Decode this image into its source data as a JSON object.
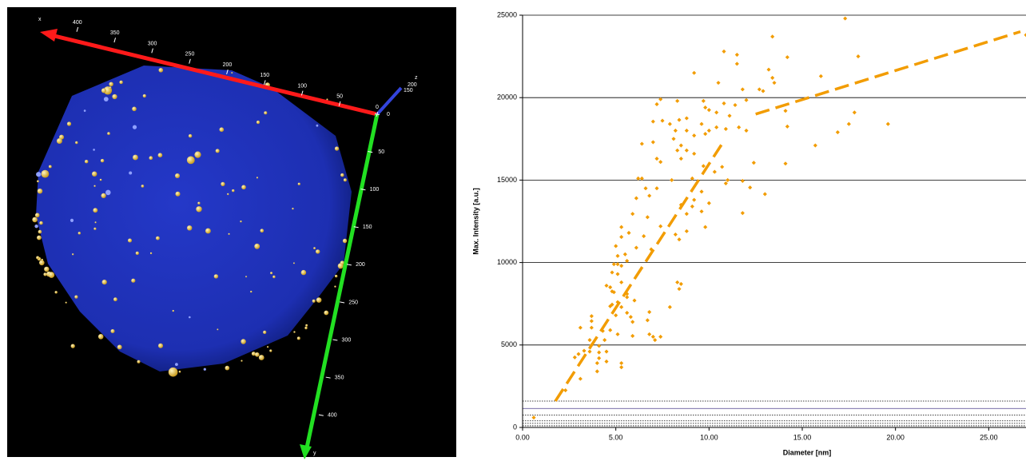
{
  "render": {
    "x_axis_label": "x",
    "x_axis_ticks": [
      0,
      50,
      100,
      150,
      200,
      250,
      300,
      350,
      400
    ],
    "y_axis_label": "y",
    "y_axis_ticks": [
      0,
      50,
      100,
      150,
      200,
      250,
      300,
      350,
      400
    ],
    "z_axis_label": "z",
    "z_axis_ticks": [
      150,
      200
    ]
  },
  "chart_data": {
    "type": "scatter",
    "x_label": "Diameter [nm]",
    "y_label": "Max. Intensity [a.u.]",
    "color": "#f29c00",
    "grid": true,
    "xlim": [
      0,
      27
    ],
    "ylim": [
      0,
      25000
    ],
    "xticks": [
      {
        "value": 0,
        "label": "0.00"
      },
      {
        "value": 5,
        "label": "5.00"
      },
      {
        "value": 10,
        "label": "10.00"
      },
      {
        "value": 15,
        "label": "15.00"
      },
      {
        "value": 20,
        "label": "20.00"
      },
      {
        "value": 25,
        "label": "25.00"
      }
    ],
    "yticks": [
      0,
      5000,
      10000,
      15000,
      20000,
      25000
    ],
    "x": [
      17.3,
      27.0,
      10.8,
      11.5,
      11.5,
      13.4,
      14.2,
      18.0,
      16.0,
      9.2,
      10.5,
      11.8,
      12.7,
      13.2,
      12.9,
      13.4,
      13.5,
      7.4,
      7.2,
      8.3,
      9.7,
      9.8,
      10.0,
      10.8,
      11.4,
      12.0,
      14.1,
      17.8,
      17.5,
      16.9,
      19.6,
      14.2,
      15.7,
      14.1,
      12.4,
      7.0,
      7.5,
      7.9,
      8.4,
      8.8,
      8.2,
      8.8,
      9.6,
      10.0,
      10.4,
      10.9,
      11.6,
      12.0,
      11.1,
      10.4,
      9.2,
      9.8,
      8.1,
      8.5,
      8.3,
      8.8,
      8.5,
      7.0,
      6.4,
      7.2,
      7.4,
      9.2,
      9.7,
      10.3,
      10.7,
      11.0,
      11.8,
      12.2,
      13.0,
      11.8,
      10.9,
      8.0,
      6.2,
      6.4,
      6.6,
      7.2,
      9.1,
      9.6,
      9.2,
      9.1,
      10.0,
      9.6,
      8.5,
      8.8,
      6.8,
      6.1,
      5.9,
      6.7,
      5.7,
      6.5,
      7.4,
      8.2,
      8.4,
      8.8,
      9.8,
      5.3,
      5.3,
      5.0,
      5.1,
      5.5,
      5.6,
      6.1,
      6.9,
      4.9,
      5.1,
      5.3,
      4.8,
      5.1,
      5.3,
      4.5,
      4.7,
      4.8,
      4.9,
      5.6,
      8.3,
      8.5,
      8.4,
      6.0,
      5.6,
      5.1,
      4.8,
      4.7,
      5.0,
      5.3,
      5.6,
      5.8,
      5.9,
      7.9,
      6.8,
      6.7,
      3.7,
      3.7,
      3.1,
      3.7,
      4.3,
      4.7,
      5.1,
      5.9,
      6.8,
      7.0,
      7.1,
      7.4,
      4.4,
      3.6,
      3.7,
      4.1,
      3.3,
      3.0,
      2.8,
      3.6,
      4.1,
      4.1,
      4.0,
      4.0,
      5.3,
      5.3,
      3.1,
      2.3,
      0.6,
      4.5,
      4.5
    ],
    "values": [
      24800,
      23800,
      22800,
      22600,
      22050,
      23700,
      22450,
      22500,
      21300,
      21500,
      20900,
      20500,
      20500,
      21700,
      20400,
      21200,
      20900,
      19900,
      19600,
      19800,
      19800,
      19400,
      19250,
      19650,
      19550,
      19850,
      19200,
      19100,
      18400,
      17900,
      18400,
      18250,
      17100,
      16000,
      16050,
      18550,
      18600,
      18400,
      18650,
      18750,
      18000,
      18000,
      18400,
      18000,
      18200,
      18100,
      18200,
      18000,
      18900,
      19100,
      17700,
      17800,
      17500,
      17100,
      16800,
      16800,
      16300,
      17300,
      17200,
      16300,
      16100,
      16600,
      15850,
      15500,
      15800,
      15000,
      14950,
      14550,
      14150,
      13000,
      14800,
      15000,
      15100,
      15100,
      14500,
      14500,
      15100,
      14300,
      13800,
      13400,
      13600,
      13100,
      13500,
      12950,
      14050,
      13900,
      12950,
      12750,
      11800,
      11600,
      12200,
      11700,
      11400,
      11900,
      12150,
      12150,
      11550,
      11000,
      10400,
      10500,
      10100,
      10900,
      10800,
      9900,
      9900,
      9800,
      9400,
      9300,
      8800,
      8600,
      8500,
      8250,
      8200,
      8100,
      8800,
      8700,
      8400,
      7700,
      7900,
      7600,
      7450,
      7350,
      6800,
      7300,
      6950,
      6700,
      6400,
      7300,
      7000,
      6500,
      6750,
      6450,
      6050,
      6050,
      5850,
      5900,
      5650,
      5550,
      5650,
      5500,
      5300,
      5500,
      5300,
      5300,
      5000,
      4950,
      4650,
      4450,
      4250,
      4600,
      4550,
      4200,
      3900,
      3400,
      3900,
      3650,
      2950,
      2250,
      600,
      4600,
      4000
    ],
    "trend_lines": [
      {
        "x": [
          1.76,
          10.7
        ],
        "values": [
          1600,
          17200
        ],
        "color": "#f29c00",
        "style": "dashed"
      },
      {
        "x": [
          12.5,
          26.7
        ],
        "values": [
          19000,
          24000
        ],
        "color": "#f29c00",
        "style": "dashed"
      }
    ],
    "reference_lines": [
      {
        "value": 1600,
        "style": "dotted",
        "color": "#000000"
      },
      {
        "value": 1150,
        "style": "solid",
        "color": "#4b3c8c"
      },
      {
        "value": 750,
        "style": "dotted",
        "color": "#000000"
      },
      {
        "value": 400,
        "style": "dotted",
        "color": "#000000"
      },
      {
        "value": 250,
        "style": "dotted",
        "color": "#000000"
      },
      {
        "value": 100,
        "style": "dotted",
        "color": "#000000"
      }
    ]
  }
}
